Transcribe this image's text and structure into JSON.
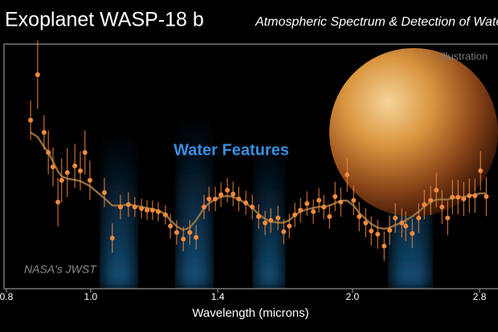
{
  "chart_data": {
    "type": "scatter",
    "title": "Exoplanet WASP-18 b",
    "subtitle": "Atmospheric Spectrum & Detection of Water",
    "illustration_label": "Illustration",
    "feature_label": "Water Features",
    "credit": "NASA's JWST",
    "x_label": "Wavelength (microns)",
    "x_scale": "log",
    "xlim": [
      0.795,
      2.94
    ],
    "xticks": [
      0.8,
      {
        "value": 1,
        "label": "1.0"
      },
      1.4,
      {
        "value": 2,
        "label": "2.0"
      },
      2.8
    ],
    "ylim": [
      0,
      100
    ],
    "x": [
      0.853,
      0.869,
      0.884,
      0.894,
      0.905,
      0.917,
      0.926,
      0.94,
      0.959,
      0.973,
      0.985,
      0.998,
      1.037,
      1.059,
      1.082,
      1.105,
      1.124,
      1.144,
      1.161,
      1.178,
      1.196,
      1.219,
      1.235,
      1.256,
      1.278,
      1.3,
      1.322,
      1.35,
      1.368,
      1.391,
      1.412,
      1.436,
      1.458,
      1.48,
      1.508,
      1.534,
      1.56,
      1.587,
      1.611,
      1.642,
      1.667,
      1.692,
      1.717,
      1.743,
      1.773,
      1.803,
      1.83,
      1.854,
      1.882,
      1.91,
      1.939,
      1.972,
      2.006,
      2.036,
      2.071,
      2.102,
      2.138,
      2.175,
      2.207,
      2.24,
      2.279,
      2.303,
      2.343,
      2.383,
      2.419,
      2.46,
      2.497,
      2.535,
      2.573,
      2.606,
      2.645,
      2.685,
      2.725,
      2.766,
      2.807,
      2.85
    ],
    "series": [
      {
        "color": "#f28a3c",
        "values": [
          68.9,
          87.5,
          63.9,
          55.7,
          49.8,
          35.4,
          44.3,
          47.5,
          50.2,
          48.2,
          55.7,
          44.3,
          39.3,
          20.7,
          33.4,
          34.4,
          33.4,
          32.8,
          32.1,
          32.1,
          31.5,
          30.2,
          25.6,
          23.0,
          20.3,
          23.0,
          21.0,
          33.4,
          36.7,
          36.7,
          38.4,
          40.3,
          38.7,
          36.7,
          35.1,
          33.4,
          29.5,
          26.9,
          27.9,
          28.9,
          23.3,
          25.6,
          30.2,
          32.1,
          34.8,
          31.5,
          36.1,
          33.4,
          29.5,
          37.7,
          35.4,
          46.6,
          36.1,
          29.5,
          26.9,
          23.6,
          22.3,
          17.4,
          23.9,
          28.9,
          26.9,
          25.6,
          22.6,
          28.9,
          34.4,
          36.1,
          40.3,
          33.4,
          28.9,
          37.4,
          37.4,
          36.7,
          38.0,
          38.0,
          48.2,
          37.7
        ],
        "errors": [
          8,
          14,
          7,
          9,
          8,
          10,
          9,
          10,
          9,
          8,
          9,
          8,
          6,
          6,
          5,
          5,
          4,
          4,
          4,
          4,
          4,
          4,
          5,
          5,
          5,
          5,
          5,
          5,
          5,
          5,
          5,
          5,
          5,
          5,
          5,
          5,
          5,
          5,
          5,
          5,
          5,
          5,
          5,
          5,
          5,
          5,
          5,
          5,
          5,
          6,
          6,
          7,
          6,
          6,
          6,
          6,
          6,
          6,
          6,
          6,
          6,
          6,
          6,
          6,
          6,
          6,
          7,
          7,
          7,
          7,
          7,
          7,
          7,
          7,
          8,
          8
        ]
      },
      {
        "type": "line",
        "color": "#8c6a3e",
        "values": [
          63.9,
          62,
          58,
          55.7,
          52,
          48,
          46,
          45,
          44.5,
          44,
          43,
          42,
          37,
          34,
          34,
          34.4,
          34,
          33.4,
          33,
          32.5,
          32,
          30.5,
          28,
          25.5,
          24,
          25,
          28,
          33,
          35,
          36.5,
          37.5,
          38,
          37.5,
          36.5,
          35,
          33,
          30.5,
          28.5,
          27.5,
          27,
          27,
          28,
          30,
          31.5,
          32.5,
          33,
          33.5,
          33.5,
          34,
          35,
          36,
          36,
          34,
          31,
          28.5,
          26.5,
          25,
          24.5,
          25,
          26,
          27,
          28,
          29.5,
          31.5,
          33.5,
          35.5,
          36.5,
          36.5,
          36.5,
          37,
          37.5,
          37.5,
          38,
          38.5,
          39,
          39
        ]
      }
    ]
  }
}
